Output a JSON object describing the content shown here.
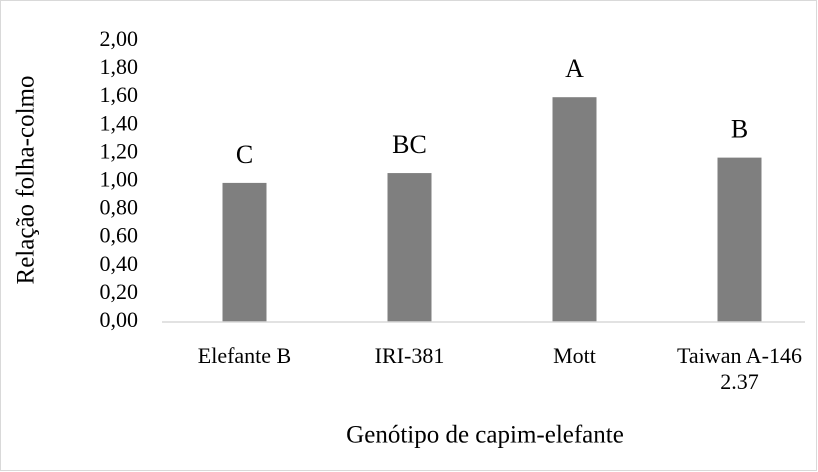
{
  "chart_data": {
    "type": "bar",
    "y_label": "Relação folha-colmo",
    "x_label": "Genótipo de capim-elefante",
    "categories": [
      "Elefante B",
      "IRI-381",
      "Mott",
      "Taiwan A-146 2.37"
    ],
    "values": [
      0.99,
      1.06,
      1.6,
      1.17
    ],
    "annotations": [
      "C",
      "BC",
      "A",
      "B"
    ],
    "color": "#7f7f7f",
    "ylim": [
      0,
      2
    ],
    "yticks": [
      {
        "value": 0,
        "label": "0,00"
      },
      {
        "value": 0.2,
        "label": "0,20"
      },
      {
        "value": 0.4,
        "label": "0,40"
      },
      {
        "value": 0.6,
        "label": "0,60"
      },
      {
        "value": 0.8,
        "label": "0,80"
      },
      {
        "value": 1,
        "label": "1,00"
      },
      {
        "value": 1.2,
        "label": "1,20"
      },
      {
        "value": 1.4,
        "label": "1,40"
      },
      {
        "value": 1.6,
        "label": "1,60"
      },
      {
        "value": 1.8,
        "label": "1,80"
      },
      {
        "value": 2,
        "label": "2,00"
      }
    ],
    "grid": false
  }
}
